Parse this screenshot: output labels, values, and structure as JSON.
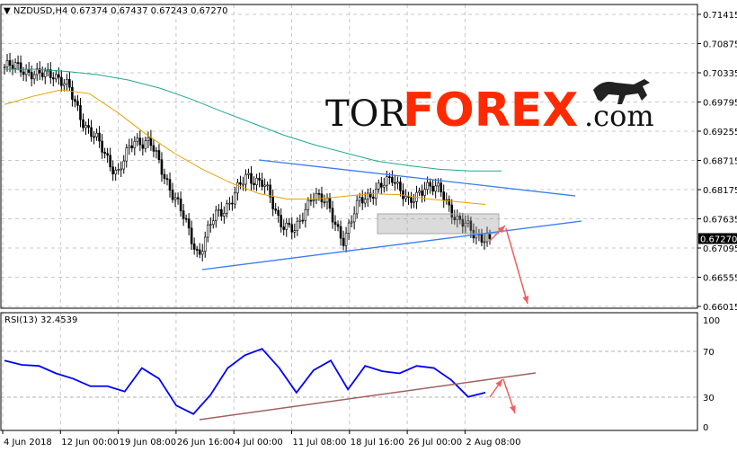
{
  "header": {
    "symbol": "NZDUSD,H4",
    "ohlc": "0.67374 0.67437 0.67243 0.67270"
  },
  "rsi_header": {
    "label": "RSI(13) 32.4539"
  },
  "logo": {
    "text_left": "TOR",
    "text_brand": "FOREX",
    "text_right": ".com",
    "brand_color": "#ff2a00"
  },
  "colors": {
    "candle": "#000000",
    "ma_fast": "#e8a000",
    "ma_slow": "#20a890",
    "trendline": "#3a7cf0",
    "rsi": "#0000ff",
    "rsi_trend": "#a06060",
    "arrow": "#f06060",
    "current_price_bg": "#000000"
  },
  "chart_data": [
    {
      "type": "candlestick",
      "title": "NZDUSD,H4",
      "ylim": [
        0.66015,
        0.71415
      ],
      "y_ticks": [
        "0.71415",
        "0.70875",
        "0.70335",
        "0.69795",
        "0.69255",
        "0.68715",
        "0.68175",
        "0.67635",
        "0.67095",
        "0.66555",
        "0.66015"
      ],
      "current_price": "0.67270",
      "x_ticks": [
        "4 Jun 2018",
        "12 Jun 00:00",
        "19 Jun 08:00",
        "26 Jun 16:00",
        "4 Jul 00:00",
        "11 Jul 08:00",
        "18 Jul 16:00",
        "26 Jul 00:00",
        "2 Aug 08:00"
      ],
      "closes_approx": [
        0.7044,
        0.7044,
        0.7027,
        0.7035,
        0.7002,
        0.6936,
        0.6895,
        0.6845,
        0.6911,
        0.6903,
        0.6837,
        0.677,
        0.6696,
        0.677,
        0.6795,
        0.6845,
        0.6828,
        0.6762,
        0.6737,
        0.6812,
        0.6787,
        0.6721,
        0.6804,
        0.6812,
        0.6845,
        0.6787,
        0.6828,
        0.6812,
        0.6762,
        0.6737,
        0.6727
      ],
      "ma_slow_approx": [
        0.704,
        0.704,
        0.7036,
        0.703,
        0.702,
        0.7005,
        0.6985,
        0.6962,
        0.694,
        0.6918,
        0.69,
        0.6885,
        0.687,
        0.6862,
        0.6855,
        0.6852,
        0.6852
      ],
      "ma_fast_approx": [
        0.6975,
        0.699,
        0.7002,
        0.6995,
        0.696,
        0.692,
        0.6885,
        0.6855,
        0.683,
        0.681,
        0.68,
        0.68,
        0.6805,
        0.681,
        0.6808,
        0.68,
        0.6795,
        0.679
      ]
    },
    {
      "type": "line",
      "title": "RSI(13) 32.4539",
      "ylim": [
        0,
        100
      ],
      "y_ticks": [
        "100",
        "70",
        "30",
        "0"
      ],
      "values_approx": [
        62,
        58,
        57,
        50,
        45,
        38,
        38,
        33,
        55,
        45,
        20,
        12,
        30,
        55,
        67,
        73,
        55,
        32,
        53,
        62,
        35,
        57,
        52,
        50,
        57,
        55,
        44,
        28,
        32
      ]
    }
  ]
}
